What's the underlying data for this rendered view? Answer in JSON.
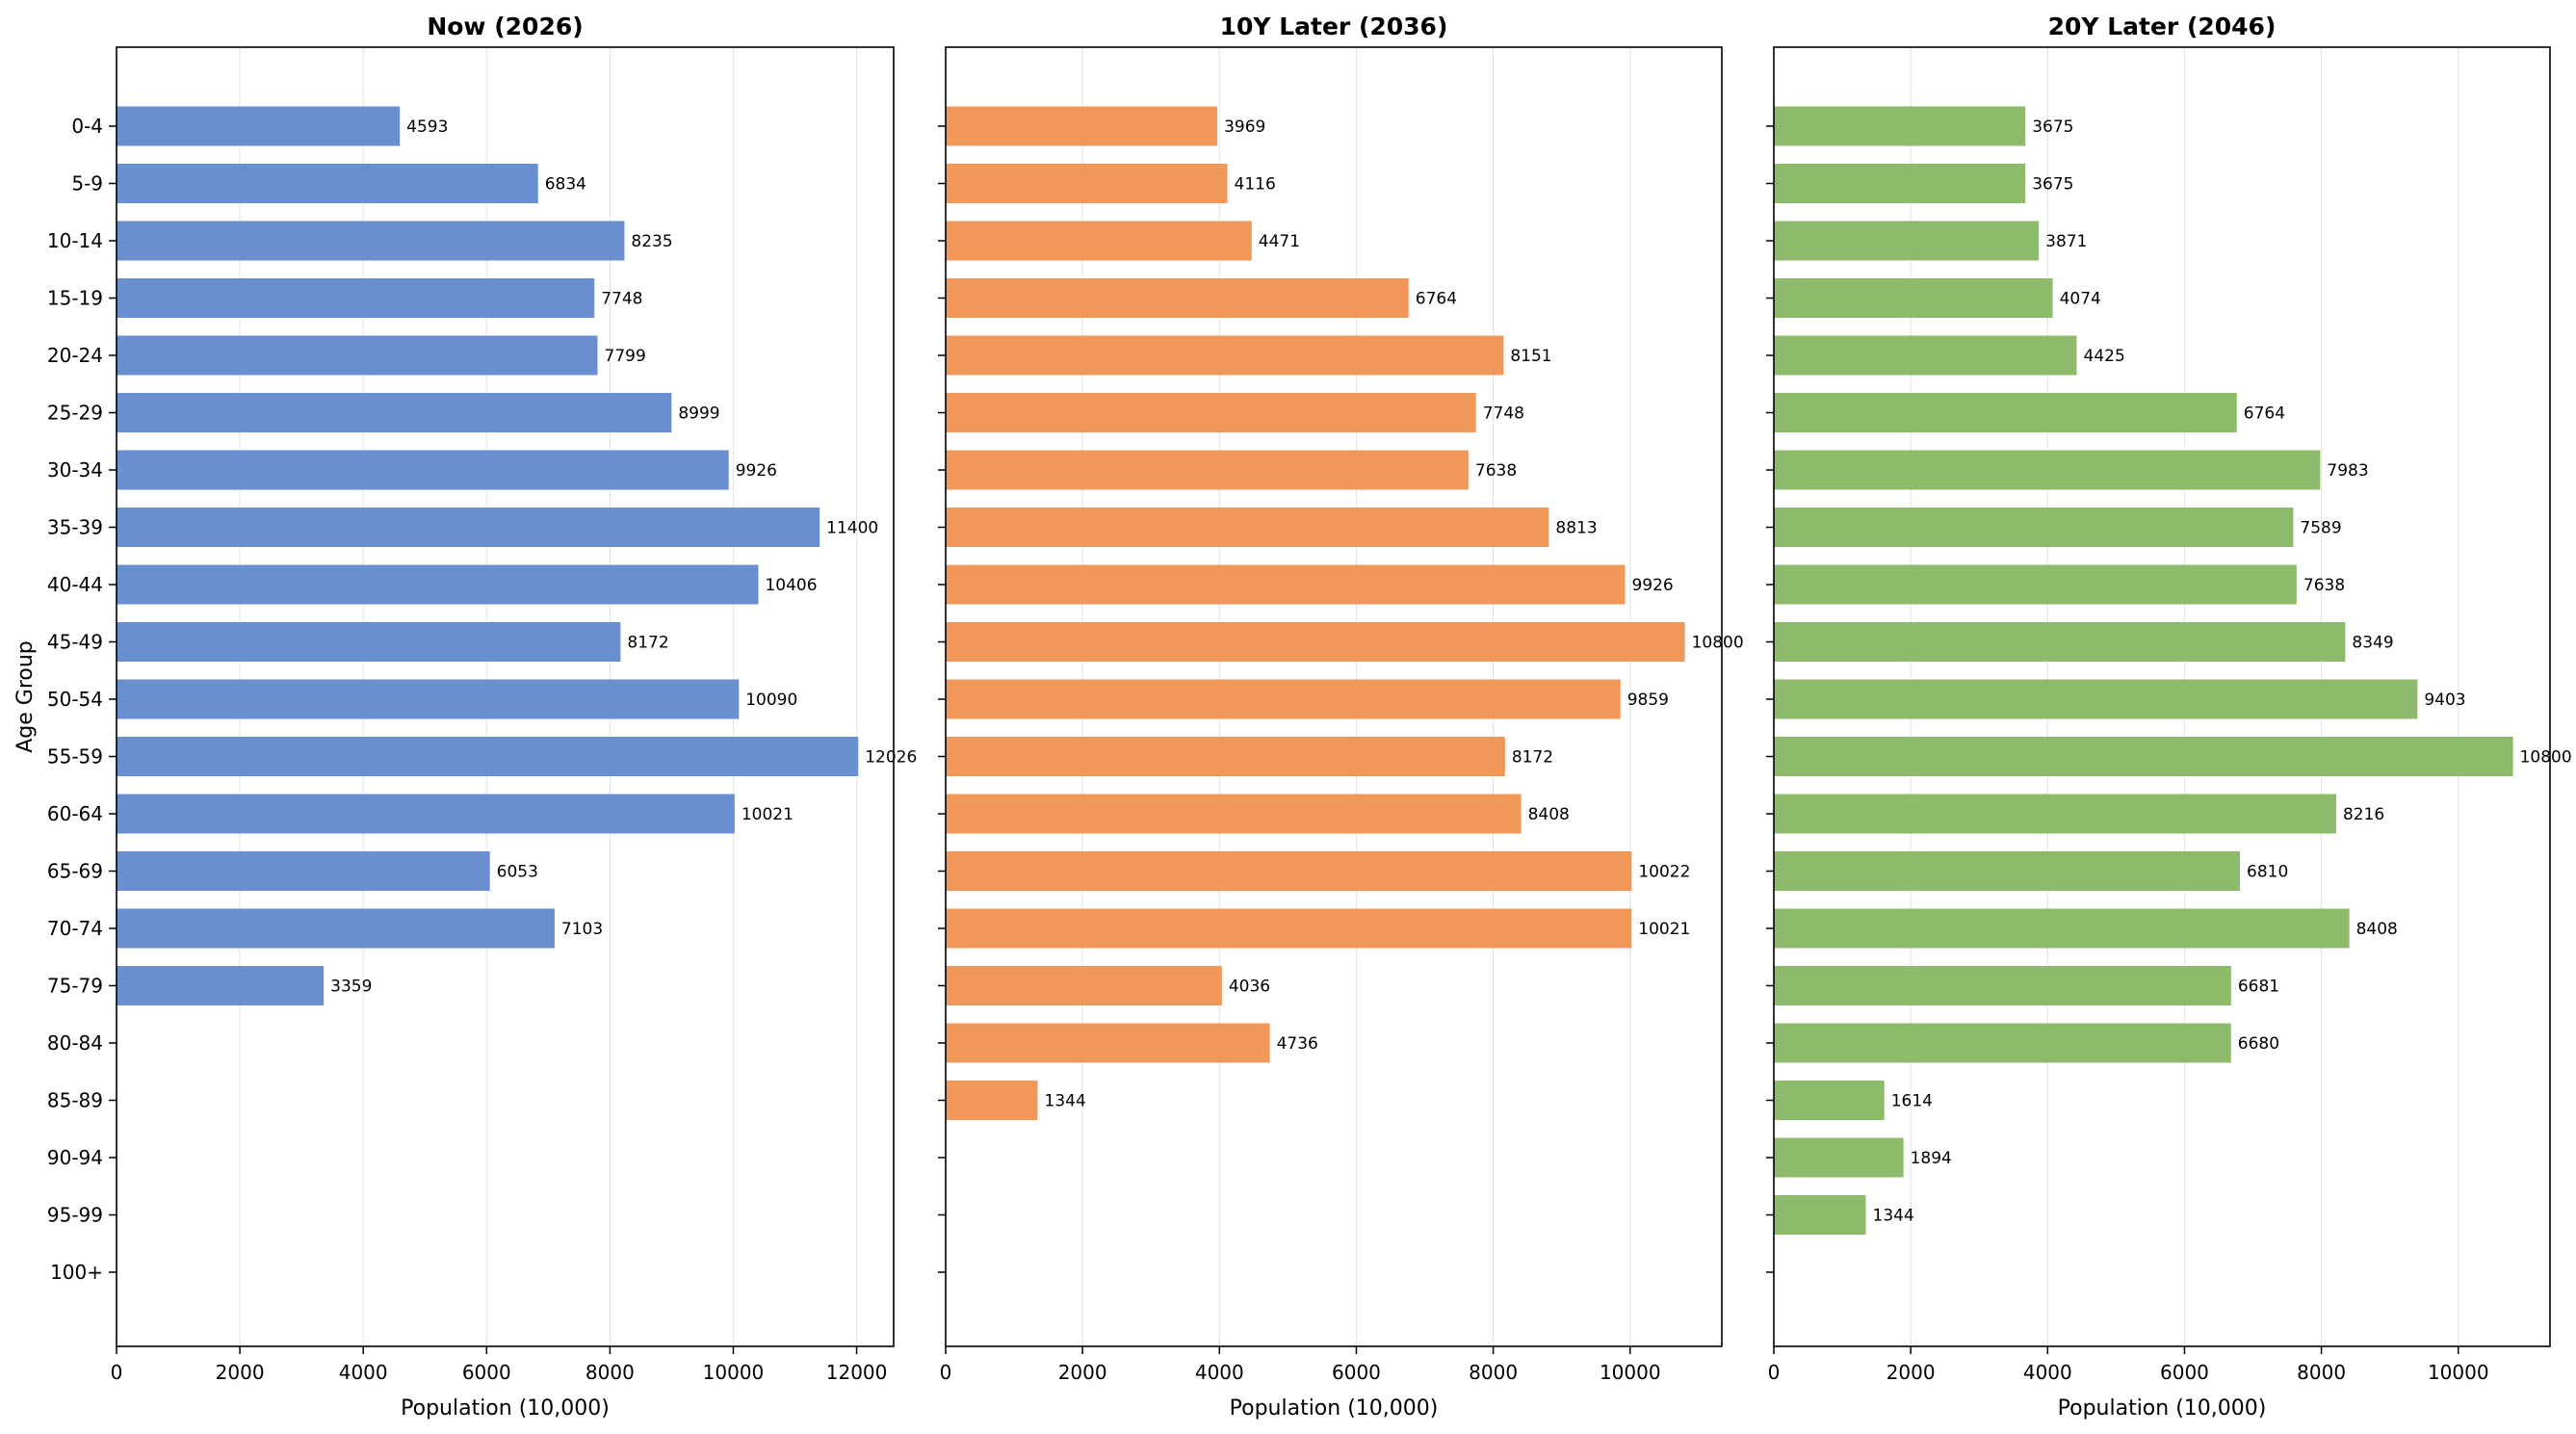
{
  "chart_data": [
    {
      "type": "bar",
      "orientation": "horizontal",
      "title": "Now (2026)",
      "xlabel": "Population (10,000)",
      "ylabel": "Age Group",
      "xlim": [
        0,
        12600
      ],
      "xticks": [
        "0",
        "2000",
        "4000",
        "6000",
        "8000",
        "10000",
        "12000"
      ],
      "grid": "x",
      "color": "#6a8fd1",
      "categories": [
        "0-4",
        "5-9",
        "10-14",
        "15-19",
        "20-24",
        "25-29",
        "30-34",
        "35-39",
        "40-44",
        "45-49",
        "50-54",
        "55-59",
        "60-64",
        "65-69",
        "70-74",
        "75-79",
        "80-84",
        "85-89",
        "90-94",
        "95-99",
        "100+"
      ],
      "values": [
        4593,
        6834,
        8235,
        7748,
        7799,
        8999,
        9926,
        11400,
        10406,
        8172,
        10090,
        12026,
        10021,
        6053,
        7103,
        3359,
        null,
        null,
        null,
        null,
        null
      ],
      "labels": [
        "4593",
        "6834",
        "8235",
        "7748",
        "7799",
        "8999",
        "9926",
        "11400",
        "10406",
        "8172",
        "10090",
        "12026",
        "10021",
        "6053",
        "7103",
        "3359",
        "",
        "",
        "",
        "",
        ""
      ]
    },
    {
      "type": "bar",
      "orientation": "horizontal",
      "title": "10Y Later (2036)",
      "xlabel": "Population (10,000)",
      "ylabel": "",
      "xlim": [
        0,
        11340
      ],
      "xticks": [
        "0",
        "2000",
        "4000",
        "6000",
        "8000",
        "10000"
      ],
      "grid": "x",
      "color": "#f0985a",
      "categories": [
        "0-4",
        "5-9",
        "10-14",
        "15-19",
        "20-24",
        "25-29",
        "30-34",
        "35-39",
        "40-44",
        "45-49",
        "50-54",
        "55-59",
        "60-64",
        "65-69",
        "70-74",
        "75-79",
        "80-84",
        "85-89",
        "90-94",
        "95-99",
        "100+"
      ],
      "values": [
        3969,
        4116,
        4471,
        6764,
        8151,
        7748,
        7638,
        8813,
        9926,
        10800,
        9859,
        8172,
        8408,
        10022,
        10021,
        4036,
        4736,
        1344,
        null,
        null,
        null
      ],
      "labels": [
        "3969",
        "4116",
        "4471",
        "6764",
        "8151",
        "7748",
        "7638",
        "8813",
        "9926",
        "10800",
        "9859",
        "8172",
        "8408",
        "10022",
        "10021",
        "4036",
        "4736",
        "1344",
        "",
        "",
        ""
      ]
    },
    {
      "type": "bar",
      "orientation": "horizontal",
      "title": "20Y Later (2046)",
      "xlabel": "Population (10,000)",
      "ylabel": "",
      "xlim": [
        0,
        11340
      ],
      "xticks": [
        "0",
        "2000",
        "4000",
        "6000",
        "8000",
        "10000"
      ],
      "grid": "x",
      "color": "#8dbb6b",
      "categories": [
        "0-4",
        "5-9",
        "10-14",
        "15-19",
        "20-24",
        "25-29",
        "30-34",
        "35-39",
        "40-44",
        "45-49",
        "50-54",
        "55-59",
        "60-64",
        "65-69",
        "70-74",
        "75-79",
        "80-84",
        "85-89",
        "90-94",
        "95-99",
        "100+"
      ],
      "values": [
        3675,
        3675,
        3871,
        4074,
        4425,
        6764,
        7983,
        7589,
        7638,
        8349,
        9403,
        10800,
        8216,
        6810,
        8408,
        6681,
        6680,
        1614,
        1894,
        1344,
        null
      ],
      "labels": [
        "3675",
        "3675",
        "3871",
        "4074",
        "4425",
        "6764",
        "7983",
        "7589",
        "7638",
        "8349",
        "9403",
        "10800",
        "8216",
        "6810",
        "8408",
        "6681",
        "6680",
        "1614",
        "1894",
        "1344",
        ""
      ]
    }
  ]
}
